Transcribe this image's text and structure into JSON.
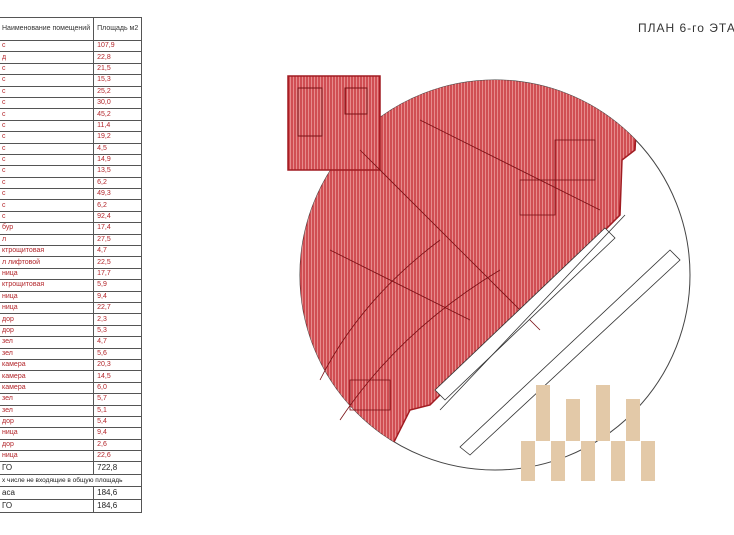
{
  "title": "ПЛАН 6-го ЭТА",
  "table": {
    "headers": [
      "Наименование помещений",
      "Площадь м2"
    ],
    "rows": [
      {
        "name": "с",
        "area": "107,9"
      },
      {
        "name": "д",
        "area": "22,8"
      },
      {
        "name": "с",
        "area": "21,5"
      },
      {
        "name": "с",
        "area": "15,3"
      },
      {
        "name": "с",
        "area": "25,2"
      },
      {
        "name": "с",
        "area": "30,0"
      },
      {
        "name": "с",
        "area": "45,2"
      },
      {
        "name": "с",
        "area": "11,4"
      },
      {
        "name": "с",
        "area": "19,2"
      },
      {
        "name": "с",
        "area": "4,5"
      },
      {
        "name": "с",
        "area": "14,9"
      },
      {
        "name": "с",
        "area": "13,5"
      },
      {
        "name": "с",
        "area": "6,2"
      },
      {
        "name": "с",
        "area": "49,3"
      },
      {
        "name": "с",
        "area": "6,2"
      },
      {
        "name": "с",
        "area": "92,4"
      },
      {
        "name": "бур",
        "area": "17,4"
      },
      {
        "name": "л",
        "area": "27,5"
      },
      {
        "name": "ктрощитовая",
        "area": "4,7"
      },
      {
        "name": "л лифтовой",
        "area": "22,5"
      },
      {
        "name": "ница",
        "area": "17,7"
      },
      {
        "name": "ктрощитовая",
        "area": "5,9"
      },
      {
        "name": "ница",
        "area": "9,4"
      },
      {
        "name": "ница",
        "area": "22,7"
      },
      {
        "name": "дор",
        "area": "2,3"
      },
      {
        "name": "дор",
        "area": "5,3"
      },
      {
        "name": "зел",
        "area": "4,7"
      },
      {
        "name": "зел",
        "area": "5,6"
      },
      {
        "name": "камера",
        "area": "20,3"
      },
      {
        "name": "камера",
        "area": "14,5"
      },
      {
        "name": "камера",
        "area": "6,0"
      },
      {
        "name": "зел",
        "area": "5,7"
      },
      {
        "name": "зел",
        "area": "5,1"
      },
      {
        "name": "дор",
        "area": "5,4"
      },
      {
        "name": "ница",
        "area": "9,4"
      },
      {
        "name": "дор",
        "area": "2,6"
      },
      {
        "name": "ница",
        "area": "22,6"
      }
    ],
    "total": {
      "name": "ГО",
      "area": "722,8"
    },
    "note": "х числе не входящие в общую площадь",
    "extra_rows": [
      {
        "name": "аса",
        "area": "184,6"
      },
      {
        "name": "ГО",
        "area": "184,6"
      }
    ]
  },
  "colors": {
    "hatch": "#c0262d",
    "fill": "#e07a7c",
    "logo": "#e3c9a8",
    "line": "#333333"
  }
}
